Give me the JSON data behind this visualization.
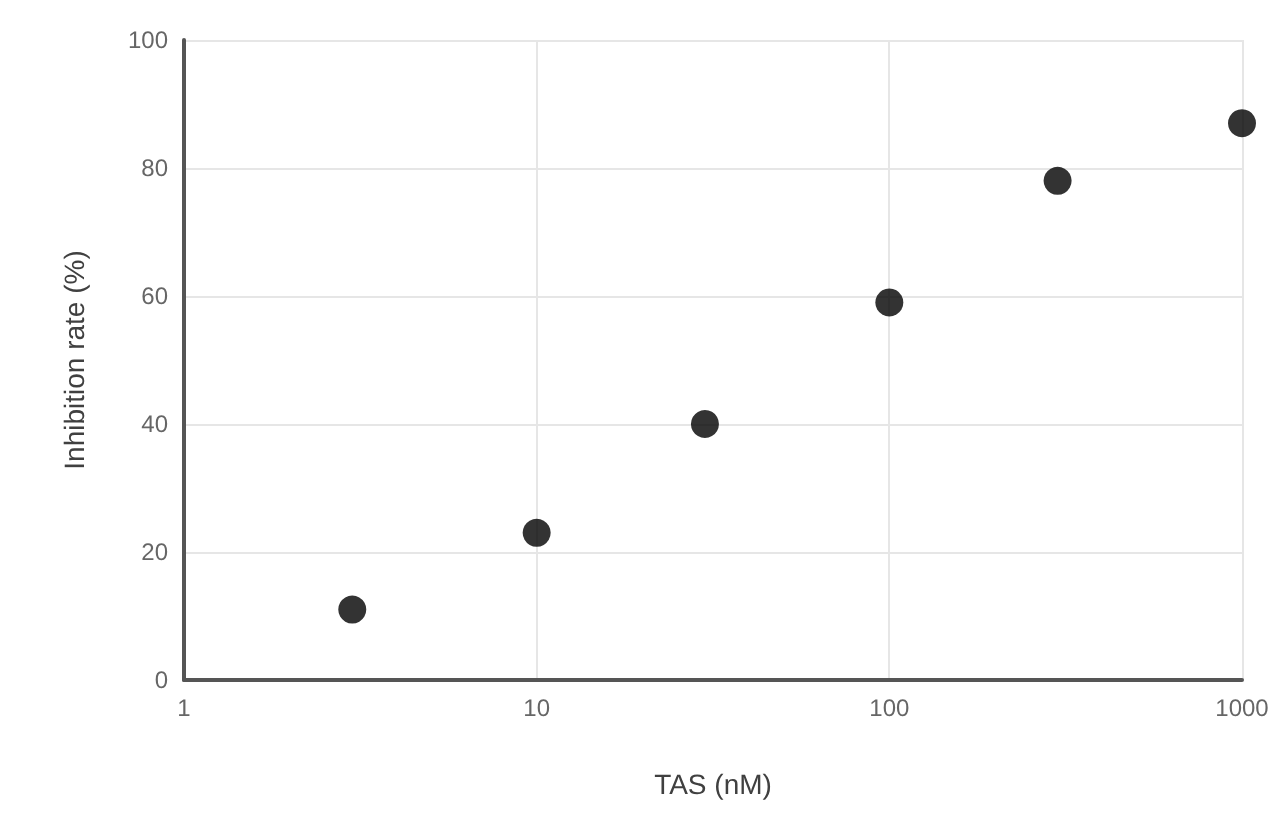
{
  "chart_data": {
    "type": "scatter",
    "xlabel": "TAS (nM)",
    "ylabel": "Inhibition rate (%)",
    "x": [
      3,
      10,
      30,
      100,
      300,
      1000
    ],
    "values": [
      11,
      23,
      40,
      59,
      78,
      87
    ],
    "color": "#000000",
    "log": "x",
    "xlim": [
      1,
      1000
    ],
    "xticks": [
      1,
      10,
      100,
      1000
    ],
    "ylim": [
      0,
      100
    ],
    "yticks": [
      0,
      20,
      40,
      60,
      80,
      100
    ],
    "grid": true,
    "marker": "circle"
  }
}
